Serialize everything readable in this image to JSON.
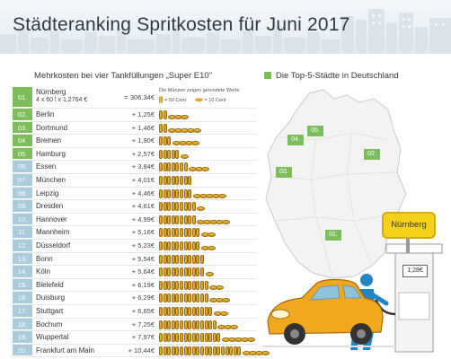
{
  "title": "Städteranking Spritkosten für Juni 2017",
  "subtitle": "Mehrkosten bei vier Tankfüllungen „Super E10\"",
  "legend_top5": "Die Top-5-Städte in Deutschland",
  "coin_legend": {
    "note": "Die Münzen zeigen gerundete Werte",
    "coin_label": "= 50 Cent",
    "cent_label": "= 10 Cent"
  },
  "first_row": {
    "rank": "01.",
    "city": "Nürnberg",
    "formula": "4 x 60 l x 1,2764 €",
    "amount": "= 306,34€"
  },
  "rows": [
    {
      "rank": "02.",
      "city": "Berlin",
      "amount": "+ 1,25€",
      "value": 1.25,
      "top5": true
    },
    {
      "rank": "03.",
      "city": "Dortmund",
      "amount": "+ 1,46€",
      "value": 1.46,
      "top5": true
    },
    {
      "rank": "04.",
      "city": "Bremen",
      "amount": "+ 1,90€",
      "value": 1.9,
      "top5": true
    },
    {
      "rank": "05.",
      "city": "Hamburg",
      "amount": "+ 2,57€",
      "value": 2.57,
      "top5": true
    },
    {
      "rank": "06.",
      "city": "Essen",
      "amount": "+ 3,84€",
      "value": 3.84,
      "top5": false
    },
    {
      "rank": "07.",
      "city": "München",
      "amount": "+ 4,01€",
      "value": 4.01,
      "top5": false
    },
    {
      "rank": "08.",
      "city": "Leipzig",
      "amount": "+ 4,46€",
      "value": 4.46,
      "top5": false
    },
    {
      "rank": "09.",
      "city": "Dresden",
      "amount": "+ 4,61€",
      "value": 4.61,
      "top5": false
    },
    {
      "rank": "10.",
      "city": "Hannover",
      "amount": "+ 4,99€",
      "value": 4.99,
      "top5": false
    },
    {
      "rank": "11.",
      "city": "Mannheim",
      "amount": "+ 5,16€",
      "value": 5.16,
      "top5": false
    },
    {
      "rank": "12.",
      "city": "Düsseldorf",
      "amount": "+ 5,23€",
      "value": 5.23,
      "top5": false
    },
    {
      "rank": "13.",
      "city": "Bonn",
      "amount": "+ 5,54€",
      "value": 5.54,
      "top5": false
    },
    {
      "rank": "14.",
      "city": "Köln",
      "amount": "+ 5,64€",
      "value": 5.64,
      "top5": false
    },
    {
      "rank": "15.",
      "city": "Bielefeld",
      "amount": "+ 6,19€",
      "value": 6.19,
      "top5": false
    },
    {
      "rank": "16.",
      "city": "Duisburg",
      "amount": "+ 6,29€",
      "value": 6.29,
      "top5": false
    },
    {
      "rank": "17.",
      "city": "Stuttgart",
      "amount": "+ 6,65€",
      "value": 6.65,
      "top5": false
    },
    {
      "rank": "18.",
      "city": "Bochum",
      "amount": "+ 7,25€",
      "value": 7.25,
      "top5": false
    },
    {
      "rank": "19.",
      "city": "Wuppertal",
      "amount": "+ 7,97€",
      "value": 7.97,
      "top5": false
    },
    {
      "rank": "20.",
      "city": "Frankfurt am Main",
      "amount": "+ 10,44€",
      "value": 10.44,
      "top5": false
    }
  ],
  "map_badges": [
    "01.",
    "02.",
    "03.",
    "04.",
    "05."
  ],
  "sign_city": "Nürnberg",
  "pump_price": "1,28€",
  "colors": {
    "top5": "#7dbe5c",
    "rank": "#a8ccdc",
    "coin": "#f2c94c",
    "car": "#f0a81e",
    "sign": "#f5d21a"
  }
}
